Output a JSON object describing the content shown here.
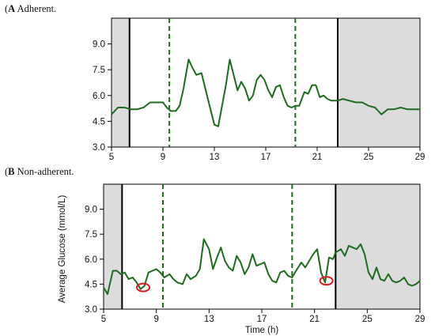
{
  "panel_a": {
    "letter": "A",
    "rest": " Adherent."
  },
  "panel_b": {
    "letter": "B",
    "rest": " Non-adherent."
  },
  "chart_data": [
    {
      "type": "line",
      "title": "(A) Adherent.",
      "xlabel": "",
      "ylabel": "",
      "xlim": [
        5,
        29
      ],
      "ylim": [
        3.0,
        10.5
      ],
      "xticks": [
        5,
        9,
        13,
        17,
        21,
        25,
        29
      ],
      "yticks": [
        3.0,
        4.5,
        6.0,
        7.5,
        9.0
      ],
      "ytick_labels": [
        "3.0",
        "4.5",
        "6.0",
        "7.5",
        "9.0"
      ],
      "shaded_regions": [
        [
          5.0,
          6.4
        ],
        [
          22.6,
          29.0
        ]
      ],
      "solid_vlines": [
        6.4,
        22.6
      ],
      "dashed_vlines": [
        9.5,
        19.3
      ],
      "line_color": "#1e6b1e",
      "shade_color": "#dcdcdc",
      "series": [
        {
          "x": [
            5.0,
            5.5,
            6.0,
            6.5,
            7.0,
            7.5,
            8.0,
            8.5,
            9.0,
            9.3,
            9.6,
            10.0,
            10.3,
            10.6,
            11.0,
            11.3,
            11.6,
            12.0,
            12.3,
            12.6,
            13.0,
            13.3,
            13.6,
            13.9,
            14.2,
            14.5,
            14.8,
            15.1,
            15.4,
            15.7,
            16.0,
            16.3,
            16.6,
            16.9,
            17.2,
            17.5,
            17.8,
            18.1,
            18.4,
            18.7,
            19.0,
            19.3,
            19.6,
            20.0,
            20.3,
            20.6,
            20.9,
            21.2,
            21.5,
            21.8,
            22.1,
            22.6,
            23.0,
            23.5,
            24.0,
            24.5,
            25.0,
            25.5,
            26.0,
            26.5,
            27.0,
            27.5,
            28.0,
            28.5,
            29.0
          ],
          "y": [
            4.9,
            5.3,
            5.3,
            5.2,
            5.2,
            5.3,
            5.6,
            5.6,
            5.6,
            5.3,
            5.1,
            5.1,
            5.4,
            6.4,
            8.1,
            7.6,
            7.2,
            7.3,
            6.4,
            5.5,
            4.3,
            4.2,
            5.4,
            6.6,
            8.1,
            7.2,
            6.3,
            6.8,
            6.4,
            5.7,
            6.0,
            6.9,
            7.2,
            6.9,
            6.3,
            5.9,
            6.5,
            6.6,
            5.9,
            5.4,
            5.3,
            5.4,
            5.4,
            6.2,
            6.1,
            6.6,
            6.6,
            5.9,
            6.0,
            5.8,
            5.7,
            5.7,
            5.8,
            5.7,
            5.6,
            5.6,
            5.4,
            5.3,
            4.9,
            5.2,
            5.2,
            5.3,
            5.2,
            5.2,
            5.2
          ]
        }
      ]
    },
    {
      "type": "line",
      "title": "(B) Non-adherent.",
      "xlabel": "Time (h)",
      "ylabel": "Average Glucose (mmol/L)",
      "xlim": [
        5,
        29
      ],
      "ylim": [
        3.0,
        10.5
      ],
      "xticks": [
        5,
        9,
        13,
        17,
        21,
        25,
        29
      ],
      "yticks": [
        3.0,
        4.5,
        6.0,
        7.5,
        9.0
      ],
      "ytick_labels": [
        "3.0",
        "4.5",
        "6.0",
        "7.5",
        "9.0"
      ],
      "shaded_regions": [
        [
          5.0,
          6.4
        ],
        [
          22.6,
          29.0
        ]
      ],
      "solid_vlines": [
        6.4,
        22.6
      ],
      "dashed_vlines": [
        9.5,
        19.3
      ],
      "line_color": "#1e6b1e",
      "shade_color": "#dcdcdc",
      "highlight_color": "#d42020",
      "highlights": [
        {
          "x": 8.0,
          "y": 4.3
        },
        {
          "x": 21.9,
          "y": 4.7
        }
      ],
      "series": [
        {
          "x": [
            5.0,
            5.3,
            5.7,
            6.0,
            6.3,
            6.6,
            6.9,
            7.2,
            7.5,
            7.8,
            8.1,
            8.4,
            8.7,
            9.0,
            9.3,
            9.6,
            10.0,
            10.3,
            10.6,
            11.0,
            11.3,
            11.6,
            12.0,
            12.3,
            12.6,
            13.0,
            13.3,
            13.6,
            13.9,
            14.2,
            14.5,
            14.8,
            15.1,
            15.4,
            15.7,
            16.0,
            16.3,
            16.6,
            16.9,
            17.2,
            17.5,
            17.8,
            18.1,
            18.4,
            18.7,
            19.0,
            19.3,
            19.6,
            20.0,
            20.3,
            20.6,
            20.9,
            21.2,
            21.5,
            21.8,
            22.1,
            22.4,
            22.6,
            23.0,
            23.3,
            23.6,
            23.9,
            24.2,
            24.5,
            24.8,
            25.1,
            25.4,
            25.7,
            26.0,
            26.3,
            26.6,
            26.9,
            27.2,
            27.5,
            27.8,
            28.1,
            28.4,
            28.7,
            29.0
          ],
          "y": [
            4.3,
            3.9,
            5.3,
            5.3,
            5.1,
            5.2,
            4.8,
            4.9,
            4.6,
            4.2,
            4.4,
            5.2,
            5.3,
            5.4,
            5.2,
            4.9,
            5.1,
            4.8,
            4.6,
            4.5,
            5.1,
            4.8,
            5.0,
            5.4,
            7.2,
            6.6,
            5.4,
            6.1,
            6.7,
            5.9,
            5.5,
            5.3,
            6.2,
            5.8,
            5.1,
            5.5,
            6.3,
            5.6,
            5.7,
            5.8,
            5.1,
            4.7,
            4.6,
            5.2,
            5.3,
            5.0,
            4.9,
            5.3,
            5.8,
            5.5,
            5.9,
            6.3,
            6.6,
            5.2,
            4.6,
            6.1,
            6.0,
            6.4,
            6.6,
            6.2,
            6.8,
            6.7,
            6.6,
            6.9,
            6.3,
            5.2,
            4.8,
            5.5,
            4.8,
            4.7,
            5.1,
            4.7,
            4.6,
            4.7,
            4.9,
            4.5,
            4.4,
            4.5,
            4.7
          ]
        }
      ]
    }
  ]
}
